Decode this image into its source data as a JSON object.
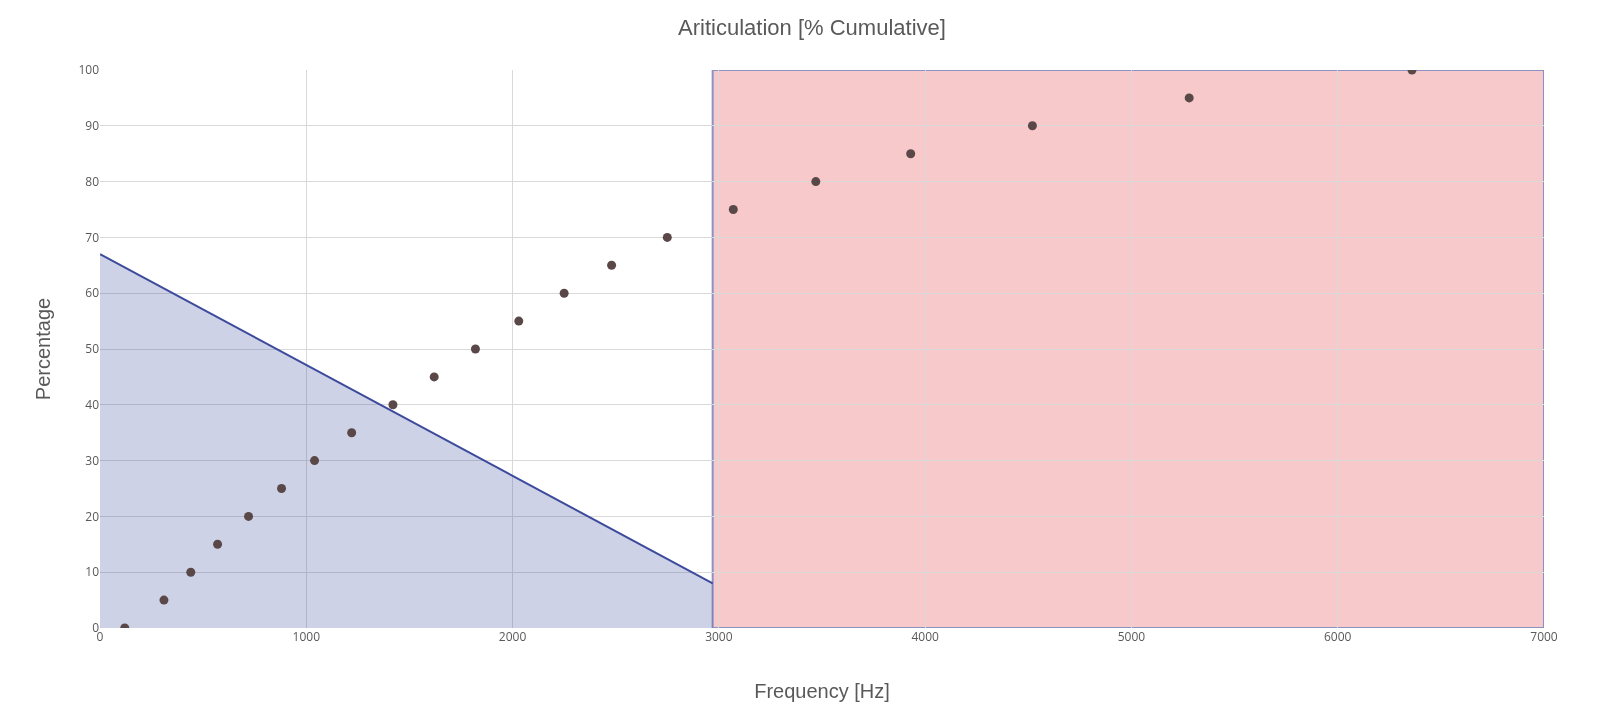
{
  "chart_data": {
    "type": "scatter",
    "title": "Ariticulation [% Cumulative]",
    "xlabel": "Frequency [Hz]",
    "ylabel": "Percentage",
    "series": [
      {
        "type": "area",
        "color": "#3c4a9c",
        "x": [
          0,
          2970
        ],
        "values": [
          67,
          8
        ]
      },
      {
        "color": "#5a4848",
        "marker": "circle",
        "x": [
          120,
          310,
          440,
          570,
          720,
          880,
          1040,
          1220,
          1420,
          1620,
          1820,
          2030,
          2250,
          2480,
          2750,
          3070,
          3470,
          3930,
          4520,
          5280,
          6360
        ],
        "values": [
          0,
          5,
          10,
          15,
          20,
          25,
          30,
          35,
          40,
          45,
          50,
          55,
          60,
          65,
          70,
          75,
          80,
          85,
          90,
          95,
          100
        ]
      }
    ],
    "bands": [
      {
        "axis": "x",
        "from": 2970,
        "to": 7000,
        "color": "#f4a6a8"
      }
    ],
    "xlim": [
      0,
      7000
    ],
    "xticks": [
      0,
      1000,
      2000,
      3000,
      4000,
      5000,
      6000,
      7000
    ],
    "ylim": [
      0,
      100
    ],
    "yticks": [
      0,
      10,
      20,
      30,
      40,
      50,
      60,
      70,
      80,
      90,
      100
    ],
    "grid": true
  }
}
